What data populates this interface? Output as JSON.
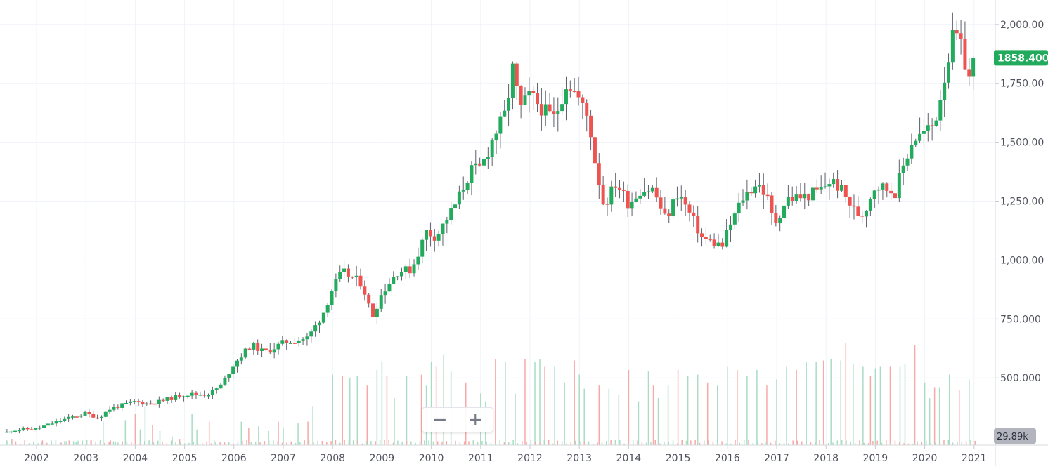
{
  "chart_data": {
    "type": "candlestick",
    "interval": "monthly",
    "y_axis": {
      "side": "right",
      "ticks": [
        500,
        750,
        1000,
        1250,
        1500,
        1750,
        2000
      ],
      "tick_labels": [
        "500.000",
        "750.000",
        "1,000.00",
        "1,250.00",
        "1,500.00",
        "1,750.00",
        "2,000.00"
      ],
      "range": [
        280,
        2090
      ]
    },
    "x_axis": {
      "labels": [
        "2002",
        "2003",
        "2004",
        "2005",
        "2006",
        "2007",
        "2008",
        "2009",
        "2010",
        "2011",
        "2012",
        "2013",
        "2014",
        "2015",
        "2016",
        "2017",
        "2018",
        "2019",
        "2020",
        "2021"
      ]
    },
    "last_price": "1858.400",
    "volume_label": "29.89k",
    "volume_scale_max": 650000,
    "colors": {
      "up": "#26a69a",
      "up_body": "#22ab5c",
      "down": "#ef5350",
      "price_badge": "#22ab5c",
      "grid": "#f0f3fa"
    },
    "grid": true,
    "anchors": [
      [
        2001.4,
        270
      ],
      [
        2001.5,
        278
      ],
      [
        2002.0,
        285
      ],
      [
        2002.5,
        320
      ],
      [
        2003.0,
        350
      ],
      [
        2003.25,
        330
      ],
      [
        2003.5,
        370
      ],
      [
        2004.0,
        400
      ],
      [
        2004.25,
        390
      ],
      [
        2004.5,
        400
      ],
      [
        2005.0,
        430
      ],
      [
        2005.5,
        432
      ],
      [
        2005.75,
        470
      ],
      [
        2006.0,
        560
      ],
      [
        2006.35,
        640
      ],
      [
        2006.6,
        610
      ],
      [
        2006.75,
        620
      ],
      [
        2007.0,
        650
      ],
      [
        2007.5,
        670
      ],
      [
        2007.8,
        770
      ],
      [
        2008.0,
        880
      ],
      [
        2008.2,
        950
      ],
      [
        2008.6,
        900
      ],
      [
        2008.8,
        760
      ],
      [
        2009.0,
        860
      ],
      [
        2009.3,
        950
      ],
      [
        2009.6,
        960
      ],
      [
        2009.9,
        1120
      ],
      [
        2010.1,
        1100
      ],
      [
        2010.5,
        1240
      ],
      [
        2010.8,
        1380
      ],
      [
        2011.0,
        1390
      ],
      [
        2011.3,
        1540
      ],
      [
        2011.5,
        1620
      ],
      [
        2011.65,
        1810
      ],
      [
        2011.8,
        1640
      ],
      [
        2012.0,
        1700
      ],
      [
        2012.3,
        1630
      ],
      [
        2012.5,
        1600
      ],
      [
        2012.75,
        1760
      ],
      [
        2012.95,
        1700
      ],
      [
        2013.2,
        1590
      ],
      [
        2013.3,
        1440
      ],
      [
        2013.5,
        1230
      ],
      [
        2013.75,
        1330
      ],
      [
        2014.0,
        1240
      ],
      [
        2014.25,
        1300
      ],
      [
        2014.5,
        1300
      ],
      [
        2014.75,
        1170
      ],
      [
        2015.0,
        1290
      ],
      [
        2015.25,
        1190
      ],
      [
        2015.5,
        1090
      ],
      [
        2015.9,
        1060
      ],
      [
        2016.0,
        1120
      ],
      [
        2016.3,
        1260
      ],
      [
        2016.6,
        1330
      ],
      [
        2016.8,
        1270
      ],
      [
        2016.95,
        1150
      ],
      [
        2017.2,
        1260
      ],
      [
        2017.6,
        1270
      ],
      [
        2017.9,
        1300
      ],
      [
        2018.1,
        1340
      ],
      [
        2018.3,
        1300
      ],
      [
        2018.6,
        1200
      ],
      [
        2018.75,
        1195
      ],
      [
        2019.0,
        1320
      ],
      [
        2019.4,
        1290
      ],
      [
        2019.6,
        1420
      ],
      [
        2019.75,
        1510
      ],
      [
        2020.0,
        1540
      ],
      [
        2020.2,
        1580
      ],
      [
        2020.4,
        1780
      ],
      [
        2020.6,
        1970
      ],
      [
        2020.75,
        1890
      ],
      [
        2020.9,
        1775
      ],
      [
        2021.05,
        1858.4
      ]
    ],
    "volume_spikes": [
      [
        2001.4,
        30000
      ],
      [
        2001.5,
        40000
      ],
      [
        2002.1,
        20000
      ],
      [
        2002.3,
        30000
      ],
      [
        2002.5,
        15000
      ],
      [
        2002.6,
        25000
      ],
      [
        2002.8,
        20000
      ],
      [
        2003.1,
        30000
      ],
      [
        2003.2,
        25000
      ],
      [
        2003.35,
        150000
      ],
      [
        2003.5,
        30000
      ],
      [
        2003.6,
        20000
      ],
      [
        2003.8,
        160000
      ],
      [
        2004.0,
        200000
      ],
      [
        2004.1,
        100000
      ],
      [
        2004.2,
        250000
      ],
      [
        2004.35,
        130000
      ],
      [
        2004.5,
        90000
      ],
      [
        2004.75,
        55000
      ],
      [
        2004.9,
        40000
      ],
      [
        2005.15,
        200000
      ],
      [
        2005.25,
        100000
      ],
      [
        2005.5,
        150000
      ],
      [
        2005.6,
        30000
      ],
      [
        2006.15,
        150000
      ],
      [
        2006.3,
        110000
      ],
      [
        2006.5,
        120000
      ],
      [
        2006.7,
        90000
      ],
      [
        2006.9,
        150000
      ],
      [
        2007.0,
        110000
      ],
      [
        2007.3,
        140000
      ],
      [
        2007.5,
        150000
      ],
      [
        2007.6,
        250000
      ],
      [
        2008.0,
        450000
      ],
      [
        2008.2,
        440000
      ],
      [
        2008.35,
        430000
      ],
      [
        2008.5,
        440000
      ],
      [
        2008.7,
        380000
      ],
      [
        2008.9,
        480000
      ],
      [
        2009.0,
        530000
      ],
      [
        2009.1,
        440000
      ],
      [
        2009.25,
        300000
      ],
      [
        2009.5,
        440000
      ],
      [
        2009.8,
        450000
      ],
      [
        2009.9,
        380000
      ],
      [
        2010.0,
        530000
      ],
      [
        2010.1,
        500000
      ],
      [
        2010.25,
        580000
      ],
      [
        2010.4,
        470000
      ],
      [
        2010.7,
        400000
      ],
      [
        2011.0,
        330000
      ],
      [
        2011.1,
        280000
      ],
      [
        2011.3,
        550000
      ],
      [
        2011.5,
        530000
      ],
      [
        2011.7,
        330000
      ],
      [
        2011.9,
        550000
      ],
      [
        2012.1,
        530000
      ],
      [
        2012.2,
        550000
      ],
      [
        2012.3,
        500000
      ],
      [
        2012.5,
        500000
      ],
      [
        2012.7,
        400000
      ],
      [
        2012.9,
        540000
      ],
      [
        2013.0,
        450000
      ],
      [
        2013.1,
        360000
      ],
      [
        2013.4,
        380000
      ],
      [
        2013.6,
        360000
      ],
      [
        2013.8,
        320000
      ],
      [
        2014.0,
        480000
      ],
      [
        2014.2,
        280000
      ],
      [
        2014.4,
        470000
      ],
      [
        2014.5,
        380000
      ],
      [
        2014.6,
        300000
      ],
      [
        2014.8,
        380000
      ],
      [
        2015.0,
        480000
      ],
      [
        2015.2,
        440000
      ],
      [
        2015.4,
        450000
      ],
      [
        2015.6,
        400000
      ],
      [
        2015.8,
        380000
      ],
      [
        2016.0,
        500000
      ],
      [
        2016.2,
        480000
      ],
      [
        2016.4,
        440000
      ],
      [
        2016.6,
        480000
      ],
      [
        2016.8,
        380000
      ],
      [
        2017.0,
        420000
      ],
      [
        2017.2,
        500000
      ],
      [
        2017.4,
        480000
      ],
      [
        2017.6,
        530000
      ],
      [
        2017.8,
        530000
      ],
      [
        2017.95,
        540000
      ],
      [
        2018.1,
        550000
      ],
      [
        2018.3,
        540000
      ],
      [
        2018.4,
        650000
      ],
      [
        2018.55,
        520000
      ],
      [
        2018.75,
        500000
      ],
      [
        2018.9,
        440000
      ],
      [
        2019.0,
        490000
      ],
      [
        2019.1,
        500000
      ],
      [
        2019.3,
        500000
      ],
      [
        2019.5,
        500000
      ],
      [
        2019.6,
        520000
      ],
      [
        2019.8,
        640000
      ],
      [
        2020.0,
        400000
      ],
      [
        2020.1,
        300000
      ],
      [
        2020.2,
        370000
      ],
      [
        2020.3,
        370000
      ],
      [
        2020.5,
        450000
      ],
      [
        2020.7,
        350000
      ],
      [
        2020.9,
        420000
      ]
    ]
  }
}
